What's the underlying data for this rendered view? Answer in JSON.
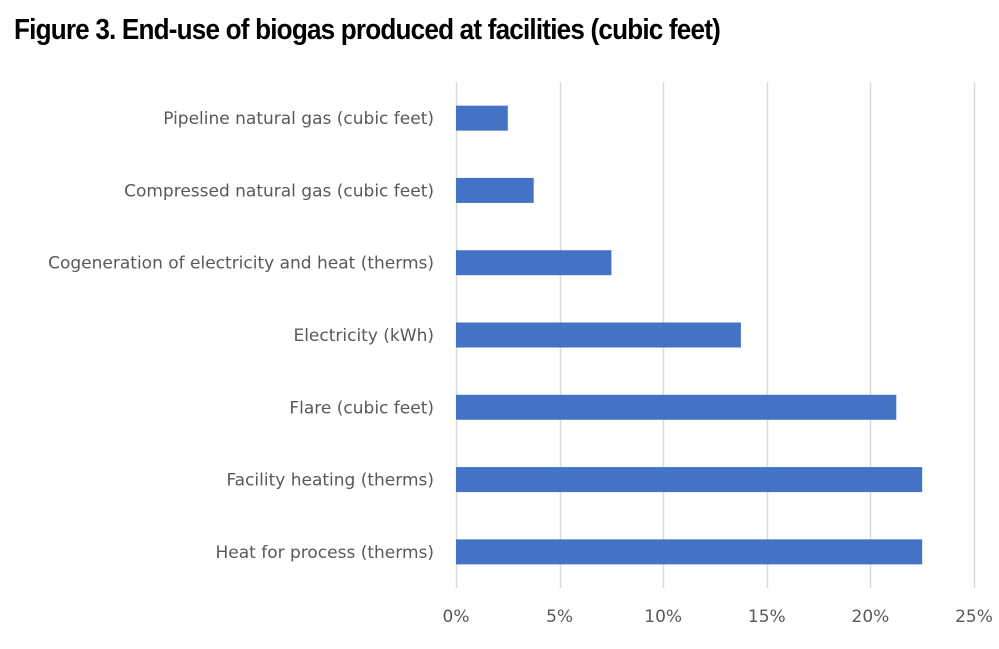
{
  "chart_data": {
    "type": "bar",
    "orientation": "horizontal",
    "title": "Figure 3. End-use of biogas produced at facilities (cubic feet)",
    "categories": [
      "Pipeline natural gas (cubic feet)",
      "Compressed natural gas (cubic feet)",
      "Cogeneration of electricity and heat (therms)",
      "Electricity (kWh)",
      "Flare (cubic feet)",
      "Facility heating (therms)",
      "Heat for process (therms)"
    ],
    "values": [
      2.5,
      3.75,
      7.5,
      13.75,
      21.25,
      22.5,
      22.5
    ],
    "value_unit": "%",
    "xlim": [
      0,
      25
    ],
    "xticks": [
      "0%",
      "5%",
      "10%",
      "15%",
      "20%",
      "25%"
    ],
    "grid": "vertical",
    "legend": "none",
    "colors": {
      "bar": "#4472c4",
      "grid": "#d9d9d9",
      "label": "#595959"
    }
  }
}
